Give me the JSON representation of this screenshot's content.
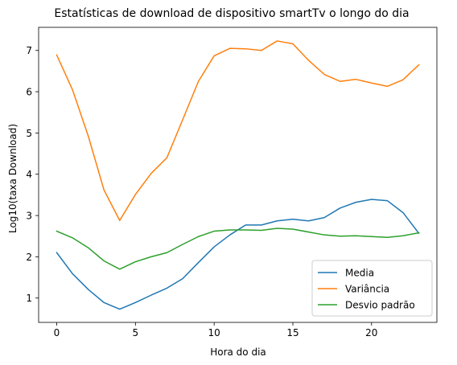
{
  "chart_data": {
    "type": "line",
    "title": "Estatísticas de download de dispositivo smartTv o longo do dia",
    "xlabel": "Hora do dia",
    "ylabel": "Log10(taxa Download)",
    "x": [
      0,
      1,
      2,
      3,
      4,
      5,
      6,
      7,
      8,
      9,
      10,
      11,
      12,
      13,
      14,
      15,
      16,
      17,
      18,
      19,
      20,
      21,
      22,
      23
    ],
    "xlim": [
      -1.15,
      24.15
    ],
    "ylim": [
      0.41,
      7.56
    ],
    "xticks": [
      0,
      5,
      10,
      15,
      20
    ],
    "yticks": [
      1,
      2,
      3,
      4,
      5,
      6,
      7
    ],
    "grid": false,
    "legend_position": "lower right",
    "series": [
      {
        "name": "Media",
        "color": "#1f77b4",
        "values": [
          2.1,
          1.59,
          1.21,
          0.89,
          0.73,
          0.89,
          1.07,
          1.24,
          1.47,
          1.86,
          2.24,
          2.53,
          2.77,
          2.77,
          2.87,
          2.91,
          2.87,
          2.95,
          3.18,
          3.32,
          3.39,
          3.36,
          3.07,
          2.57
        ]
      },
      {
        "name": "Variância",
        "color": "#ff7f0e",
        "values": [
          6.89,
          6.05,
          4.93,
          3.62,
          2.88,
          3.51,
          4.02,
          4.4,
          5.32,
          6.25,
          6.87,
          7.05,
          7.04,
          7.0,
          7.23,
          7.16,
          6.76,
          6.42,
          6.25,
          6.3,
          6.21,
          6.13,
          6.29,
          6.65
        ]
      },
      {
        "name": "Desvio padrão",
        "color": "#2ca02c",
        "values": [
          2.62,
          2.46,
          2.22,
          1.9,
          1.7,
          1.88,
          2.0,
          2.1,
          2.3,
          2.49,
          2.62,
          2.65,
          2.65,
          2.64,
          2.69,
          2.67,
          2.6,
          2.53,
          2.5,
          2.51,
          2.49,
          2.47,
          2.51,
          2.58
        ]
      }
    ]
  }
}
